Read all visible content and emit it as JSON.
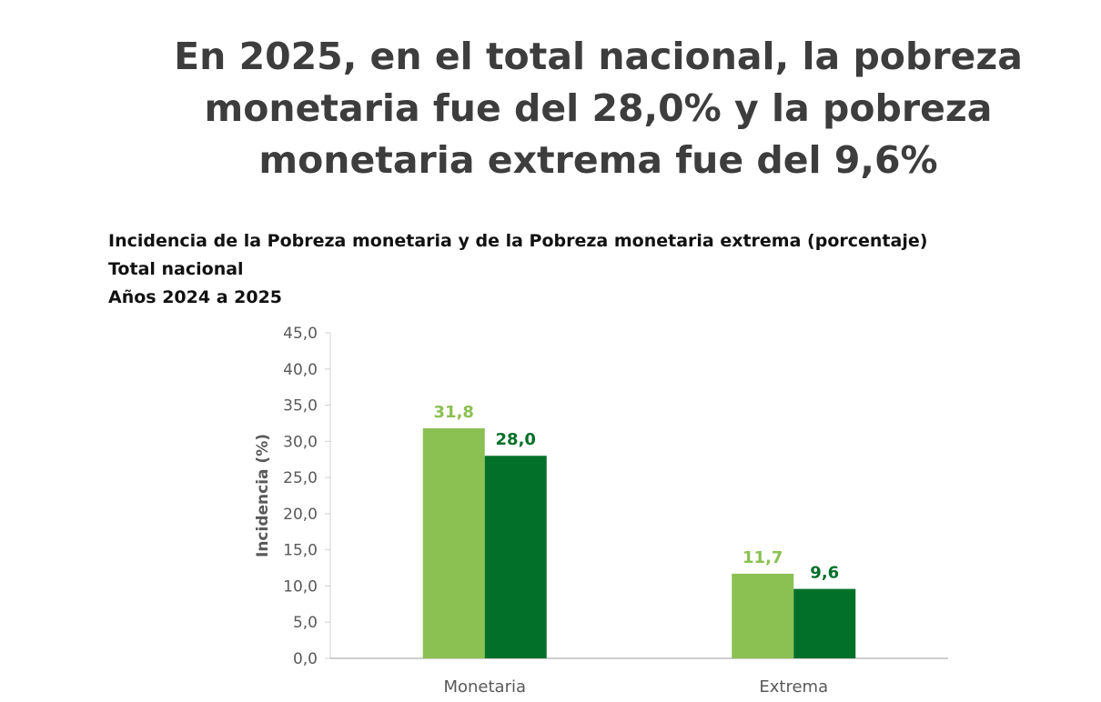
{
  "headline": "En 2025, en el total nacional, la pobreza monetaria fue del 28,0% y la pobreza monetaria extrema fue del 9,6%",
  "chart_data": {
    "type": "bar",
    "title": "Incidencia de la Pobreza monetaria y de la Pobreza monetaria extrema (porcentaje)",
    "subtitle_lines": [
      "Total nacional",
      "Años 2024 a 2025"
    ],
    "ylabel": "Incidencia (%)",
    "xlabel": "",
    "ylim": [
      0,
      45
    ],
    "yticks": [
      0,
      5,
      10,
      15,
      20,
      25,
      30,
      35,
      40,
      45
    ],
    "ytick_labels": [
      "0,0",
      "5,0",
      "10,0",
      "15,0",
      "20,0",
      "25,0",
      "30,0",
      "35,0",
      "40,0",
      "45,0"
    ],
    "categories": [
      "Monetaria",
      "Extrema"
    ],
    "series": [
      {
        "values": [
          31.8,
          11.7
        ],
        "labels": [
          "31,8",
          "11,7"
        ],
        "color": "#8bc053",
        "label_color": "#8bc053"
      },
      {
        "values": [
          28.0,
          9.6
        ],
        "labels": [
          "28,0",
          "9,6"
        ],
        "color": "#027029",
        "label_color": "#027029"
      }
    ],
    "grid": false,
    "legend": "none"
  }
}
